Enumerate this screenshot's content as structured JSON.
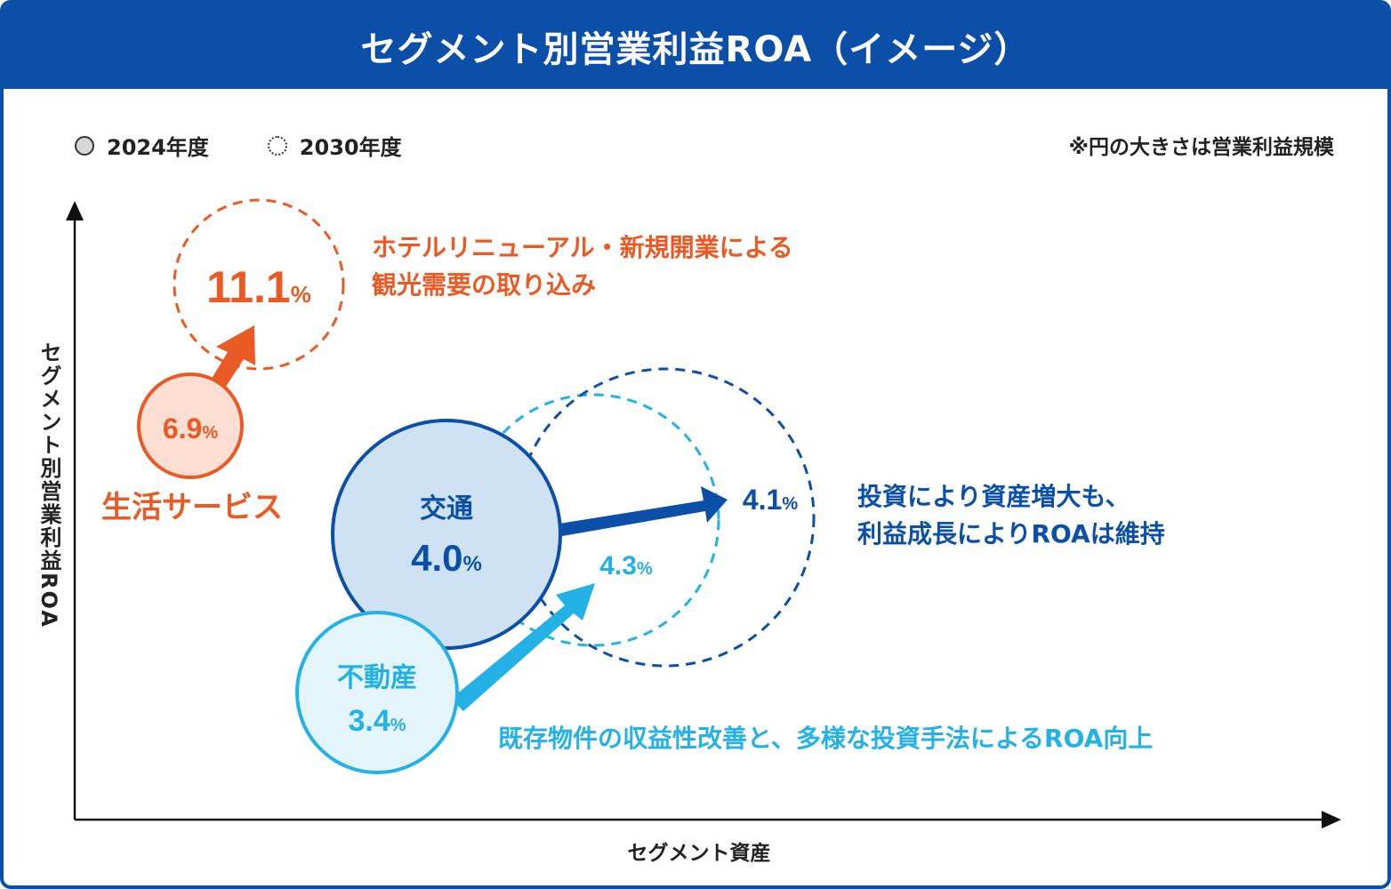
{
  "title": "セグメント別営業利益ROA（イメージ）",
  "legend": {
    "current": "2024年度",
    "future": "2030年度"
  },
  "note": "※円の大きさは営業利益規模",
  "axes": {
    "y": "セグメント別営業利益ROA",
    "x": "セグメント資産"
  },
  "colors": {
    "header": "#0b4fa8",
    "life": "#ea5a24",
    "transport": "#0b4fa8",
    "realestate": "#23b1e6"
  },
  "segments": {
    "life": {
      "name": "生活サービス",
      "roa_2024": "6.9",
      "roa_2030": "11.1",
      "unit": "%",
      "comment_line1": "ホテルリニューアル・新規開業による",
      "comment_line2": "観光需要の取り込み"
    },
    "transport": {
      "name": "交通",
      "roa_2024": "4.0",
      "roa_2030": "4.1",
      "unit": "%",
      "comment_line1": "投資により資産増大も、",
      "comment_line2": "利益成長によりROAは維持"
    },
    "realestate": {
      "name": "不動産",
      "roa_2024": "3.4",
      "roa_2030": "4.3",
      "unit": "%",
      "comment": "既存物件の収益性改善と、多様な投資手法によるROA向上"
    }
  }
}
